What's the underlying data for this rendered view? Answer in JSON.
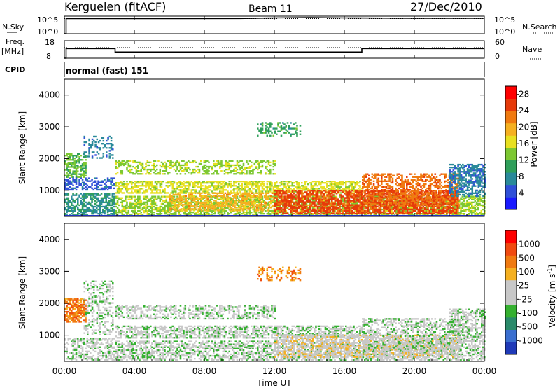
{
  "header": {
    "station": "Kerguelen (fitACF)",
    "beam": "Beam 11",
    "date": "27/Dec/2010"
  },
  "time_axis": {
    "label": "Time UT",
    "ticks": [
      "00:00",
      "04:00",
      "08:00",
      "12:00",
      "16:00",
      "20:00",
      "00:00"
    ],
    "range_hours": [
      0,
      24
    ]
  },
  "noise_panel": {
    "left_label": "N.Sky",
    "right_label": "N.Search",
    "left_ticks": [
      "10^5",
      "10^0"
    ],
    "right_ticks": [
      "10^5",
      "10^0"
    ]
  },
  "freq_panel": {
    "left_label_1": "Freq.",
    "left_label_2": "[MHz]",
    "right_label": "Nave",
    "left_ticks": [
      "18",
      "8"
    ],
    "right_ticks": [
      "60",
      "0"
    ]
  },
  "cpid": {
    "label": "CPID",
    "value": "normal (fast) 151"
  },
  "chart_data": [
    {
      "type": "line",
      "name_ref": "noise",
      "series": [
        {
          "role": "sky_noise",
          "style": "solid",
          "x_hours": [
            0,
            0.1,
            0.1,
            6,
            10,
            12,
            14,
            16,
            20,
            24
          ],
          "y_log10": [
            0,
            0,
            4.3,
            4.3,
            4.35,
            4.5,
            4.6,
            4.5,
            4.4,
            4.4
          ]
        },
        {
          "role": "search_noise",
          "style": "dotted",
          "x_hours": [
            0,
            24
          ],
          "y_log10": [
            4.3,
            4.3
          ]
        }
      ],
      "ylim_log10": [
        0,
        5
      ]
    },
    {
      "type": "line",
      "name_ref": "frequency",
      "series": [
        {
          "role": "frequency_mhz",
          "style": "solid",
          "x_hours": [
            0,
            0.1,
            0.1,
            2.9,
            2.9,
            17.0,
            17.0,
            24
          ],
          "y": [
            8,
            8,
            13.5,
            13.5,
            11.5,
            11.5,
            13.5,
            13.5
          ]
        },
        {
          "role": "nave",
          "style": "dotted",
          "x_hours": [
            0,
            24
          ],
          "y": [
            36,
            36
          ]
        }
      ],
      "ylim": [
        8,
        18
      ],
      "ylim_right": [
        0,
        60
      ]
    },
    {
      "type": "heatmap",
      "name_ref": "power",
      "ylabel": "Slant Range [km]",
      "yticks": [
        1000,
        2000,
        3000,
        4000
      ],
      "ylim": [
        180,
        4500
      ],
      "colorbar": {
        "label": "Power [dB]",
        "ticks": [
          "4",
          "8",
          "12",
          "16",
          "20",
          "24",
          "28"
        ],
        "range": [
          0,
          30
        ],
        "colors": [
          "#1a1aff",
          "#3050d8",
          "#2a8a9a",
          "#2f9f5a",
          "#7dc832",
          "#e8e020",
          "#f5b020",
          "#f07a10",
          "#e63a0a",
          "#ff0000"
        ]
      },
      "regions": [
        {
          "t": [
            0.0,
            1.2
          ],
          "r": [
            1400,
            2150
          ],
          "level": 12,
          "density": 0.65
        },
        {
          "t": [
            1.1,
            2.8
          ],
          "r": [
            2000,
            2700
          ],
          "level": 6,
          "density": 0.3
        },
        {
          "t": [
            0.0,
            2.8
          ],
          "r": [
            1000,
            1400
          ],
          "level": 4,
          "density": 0.5
        },
        {
          "t": [
            0.0,
            2.8
          ],
          "r": [
            200,
            900
          ],
          "level": 8,
          "density": 0.6
        },
        {
          "t": [
            2.9,
            12.0
          ],
          "r": [
            1500,
            1950
          ],
          "level": 14,
          "density": 0.45
        },
        {
          "t": [
            2.9,
            17.0
          ],
          "r": [
            900,
            1300
          ],
          "level": 16,
          "density": 0.6
        },
        {
          "t": [
            2.9,
            24.0
          ],
          "r": [
            200,
            800
          ],
          "level": 14,
          "density": 0.6
        },
        {
          "t": [
            6.0,
            12.0
          ],
          "r": [
            350,
            900
          ],
          "level": 20,
          "density": 0.5
        },
        {
          "t": [
            11.0,
            13.5
          ],
          "r": [
            2700,
            3150
          ],
          "level": 10,
          "density": 0.35
        },
        {
          "t": [
            12.0,
            22.5
          ],
          "r": [
            250,
            1000
          ],
          "level": 26,
          "density": 0.7
        },
        {
          "t": [
            17.0,
            22.5
          ],
          "r": [
            500,
            1500
          ],
          "level": 24,
          "density": 0.5
        },
        {
          "t": [
            22.0,
            24.0
          ],
          "r": [
            800,
            1800
          ],
          "level": 6,
          "density": 0.6
        }
      ]
    },
    {
      "type": "heatmap",
      "name_ref": "velocity",
      "ylabel": "Slant Range [km]",
      "yticks": [
        1000,
        2000,
        3000,
        4000
      ],
      "ylim": [
        180,
        4500
      ],
      "colorbar": {
        "label": "Velocity [m s",
        "label_sup": "-1",
        "ticks": [
          "1000",
          "500",
          "100",
          "25",
          "-25",
          "-100",
          "-500",
          "-1000"
        ],
        "colors": [
          "#1f3ab8",
          "#3a6fd0",
          "#2a8a6a",
          "#35b030",
          "#c8c8c8",
          "#c8c8c8",
          "#f5b020",
          "#f07a10",
          "#f04a10",
          "#ff0000"
        ]
      },
      "regions": [
        {
          "t": [
            0.0,
            1.2
          ],
          "r": [
            1400,
            2150
          ],
          "level": 7,
          "density": 0.7
        },
        {
          "t": [
            1.1,
            2.8
          ],
          "r": [
            1000,
            2700
          ],
          "level": 4,
          "density": 0.35
        },
        {
          "t": [
            0.0,
            2.8
          ],
          "r": [
            200,
            900
          ],
          "level": 4,
          "density": 0.45
        },
        {
          "t": [
            2.9,
            12.0
          ],
          "r": [
            1500,
            1950
          ],
          "level": 4,
          "density": 0.45
        },
        {
          "t": [
            2.9,
            17.0
          ],
          "r": [
            900,
            1300
          ],
          "level": 4,
          "density": 0.55
        },
        {
          "t": [
            2.9,
            24.0
          ],
          "r": [
            200,
            800
          ],
          "level": 4,
          "density": 0.55
        },
        {
          "t": [
            11.0,
            13.5
          ],
          "r": [
            2700,
            3150
          ],
          "level": 7,
          "density": 0.35
        },
        {
          "t": [
            12.0,
            22.5
          ],
          "r": [
            300,
            1000
          ],
          "level": 5,
          "density": 0.55
        },
        {
          "t": [
            17.0,
            22.5
          ],
          "r": [
            500,
            1500
          ],
          "level": 4,
          "density": 0.45
        },
        {
          "t": [
            22.0,
            24.0
          ],
          "r": [
            800,
            1800
          ],
          "level": 4,
          "density": 0.55
        }
      ]
    }
  ]
}
